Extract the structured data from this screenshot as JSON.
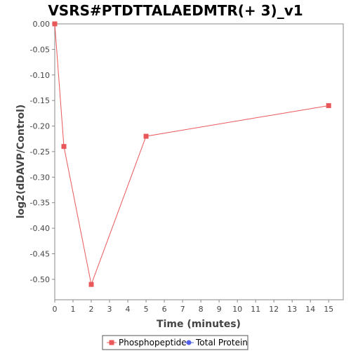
{
  "chart_data": {
    "type": "line",
    "title": "VSRS#PTDTTALAEDMTR(+ 3)_v1",
    "xlabel": "Time (minutes)",
    "ylabel": "log2(dDAVP/Control)",
    "xlim": [
      0,
      15.8
    ],
    "ylim": [
      -0.54,
      0.0
    ],
    "x_ticks": [
      0,
      1,
      2,
      3,
      4,
      5,
      6,
      7,
      8,
      9,
      10,
      11,
      12,
      13,
      14,
      15
    ],
    "y_ticks": [
      0.0,
      -0.05,
      -0.1,
      -0.15,
      -0.2,
      -0.25,
      -0.3,
      -0.35,
      -0.4,
      -0.45,
      -0.5
    ],
    "y_tick_labels": [
      "0.00",
      "-0.05",
      "-0.10",
      "-0.15",
      "-0.20",
      "-0.25",
      "-0.30",
      "-0.35",
      "-0.40",
      "-0.45",
      "-0.50"
    ],
    "grid": false,
    "legend_placement": "bottom-center",
    "series": [
      {
        "name": "Phosphopeptide",
        "color": "#e8585a",
        "marker": "square",
        "x": [
          0,
          0.5,
          2,
          5,
          15
        ],
        "y": [
          0.0,
          -0.24,
          -0.51,
          -0.22,
          -0.16
        ]
      },
      {
        "name": "Total Protein",
        "color": "#5561e8",
        "marker": "circle",
        "x": [],
        "y": []
      }
    ]
  }
}
